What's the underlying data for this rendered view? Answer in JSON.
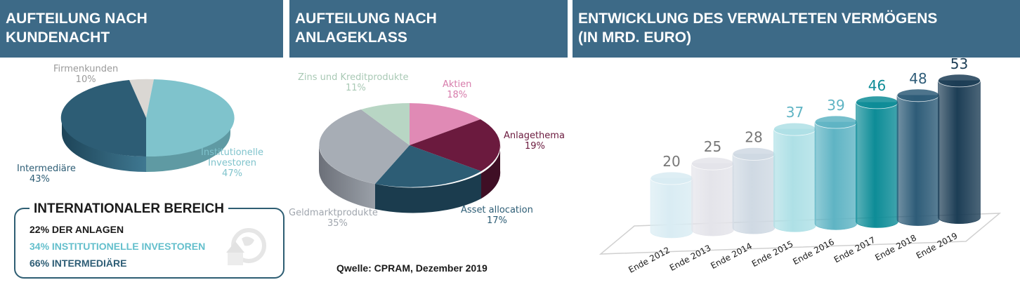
{
  "panels": {
    "client": {
      "title_line1": "AUFTEILUNG NACH",
      "title_line2": "KUNDENACHT"
    },
    "asset": {
      "title_line1": "AUFTEILUNG NACH",
      "title_line2": "ANLAGEKLASS"
    },
    "aum": {
      "title_line1": "ENTWICKLUNG DES VERWALTETEN VERMÖGENS",
      "title_line2": "(IN MRD. EURO)"
    }
  },
  "international": {
    "title": "INTERNATIONALER BEREICH",
    "line1": "22% DER ANLAGEN",
    "line2": "34% INSTITUTIONELLE INVESTOREN",
    "line3": "66% INTERMEDIÄRE",
    "icon": "globe-arrow-icon"
  },
  "source": "Qwelle: CPRAM, Dezember 2019",
  "chart_data": [
    {
      "type": "pie",
      "slices": [
        {
          "label": "Firmenkunden",
          "value": 10,
          "value_label": "10%",
          "color": "#dad7d3"
        },
        {
          "label": "Institutionelle Investoren",
          "label_line1": "Institutionelle",
          "label_line2": "Investoren",
          "value": 47,
          "value_label": "47%",
          "color": "#7fc3cc"
        },
        {
          "label": "Intermediäre",
          "value": 43,
          "value_label": "43%",
          "color": "#2d5d75"
        }
      ]
    },
    {
      "type": "pie",
      "slices": [
        {
          "label": "Aktien",
          "value": 18,
          "value_label": "18%",
          "color": "#e08ab5"
        },
        {
          "label": "Anlagethema",
          "value": 19,
          "value_label": "19%",
          "color": "#6b1a3e"
        },
        {
          "label": "Asset allocation",
          "value": 17,
          "value_label": "17%",
          "color": "#2d5d75"
        },
        {
          "label": "Geldmarktprodukte",
          "value": 35,
          "value_label": "35%",
          "color": "#a7adb5"
        },
        {
          "label": "Zins und Kreditprodukte",
          "value": 11,
          "value_label": "11%",
          "color": "#b8d6c4"
        }
      ]
    },
    {
      "type": "bar",
      "categories": [
        "Ende 2012",
        "Ende 2013",
        "Ende 2014",
        "Ende 2015",
        "Ende 2016",
        "Ende 2017",
        "Ende 2018",
        "Ende 2019"
      ],
      "values": [
        20,
        25,
        28,
        37,
        39,
        46,
        48,
        53
      ],
      "value_labels": [
        "20",
        "25",
        "28",
        "37",
        "39",
        "46",
        "48",
        "53"
      ],
      "colors": [
        "#d9ecf3",
        "#e4e4ea",
        "#cfd9e3",
        "#aee0e6",
        "#5fb4c4",
        "#0d8c97",
        "#2e5c78",
        "#1c3d55"
      ],
      "label_colors": [
        "#777777",
        "#777777",
        "#777777",
        "#5fb4c4",
        "#5fb4c4",
        "#0d8c97",
        "#2e5c78",
        "#1c3d55"
      ],
      "ylim": [
        0,
        55
      ]
    }
  ]
}
